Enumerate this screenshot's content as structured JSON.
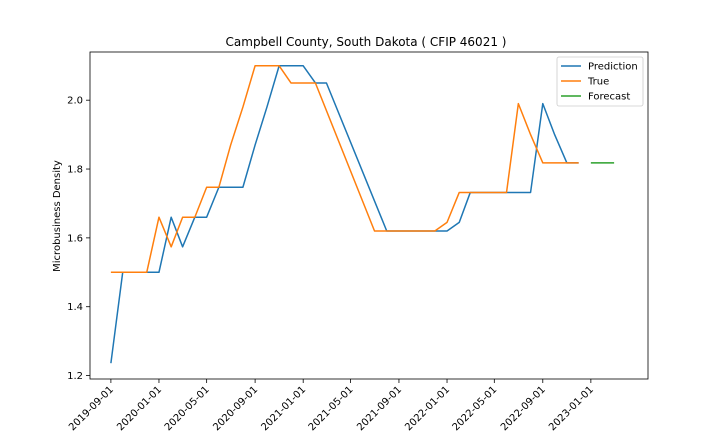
{
  "chart_data": {
    "type": "line",
    "title": "Campbell County, South Dakota ( CFIP 46021 )",
    "xlabel": "",
    "ylabel": "Microbusiness Density",
    "ylim": [
      1.19,
      2.14
    ],
    "xlim": [
      "2019-07-10",
      "2023-05-26"
    ],
    "x_ticks": [
      "2019-09-01",
      "2020-01-01",
      "2020-05-01",
      "2020-09-01",
      "2021-01-01",
      "2021-05-01",
      "2021-09-01",
      "2022-01-01",
      "2022-05-01",
      "2022-09-01",
      "2023-01-01"
    ],
    "y_ticks": [
      "1.2",
      "1.4",
      "1.6",
      "1.8",
      "2.0"
    ],
    "legend_position": "top-right",
    "grid": false,
    "series": [
      {
        "name": "Prediction",
        "color": "#1f77b4",
        "x": [
          "2019-09-01",
          "2019-10-01",
          "2019-11-01",
          "2019-12-01",
          "2020-01-01",
          "2020-02-01",
          "2020-03-01",
          "2020-04-01",
          "2020-05-01",
          "2020-06-01",
          "2020-07-01",
          "2020-08-01",
          "2020-09-01",
          "2020-10-01",
          "2020-11-01",
          "2020-12-01",
          "2021-01-01",
          "2021-02-01",
          "2021-03-01",
          "2021-08-01",
          "2021-09-01",
          "2021-12-01",
          "2022-01-01",
          "2022-02-01",
          "2022-03-01",
          "2022-04-01",
          "2022-05-01",
          "2022-06-01",
          "2022-07-01",
          "2022-08-01",
          "2022-09-01",
          "2022-10-01",
          "2022-11-01",
          "2022-12-01"
        ],
        "values": [
          1.236,
          1.5,
          1.5,
          1.5,
          1.5,
          1.66,
          1.574,
          1.66,
          1.66,
          1.747,
          1.747,
          1.747,
          1.87,
          1.98,
          2.1,
          2.1,
          2.1,
          2.05,
          2.05,
          1.62,
          1.62,
          1.62,
          1.62,
          1.645,
          1.732,
          1.732,
          1.732,
          1.732,
          1.732,
          1.732,
          1.99,
          1.9,
          1.818,
          1.818
        ]
      },
      {
        "name": "True",
        "color": "#ff7f0e",
        "x": [
          "2019-09-01",
          "2019-10-01",
          "2019-11-01",
          "2019-12-01",
          "2020-01-01",
          "2020-02-01",
          "2020-03-01",
          "2020-04-01",
          "2020-05-01",
          "2020-06-01",
          "2020-07-01",
          "2020-08-01",
          "2020-09-01",
          "2020-10-01",
          "2020-11-01",
          "2020-12-01",
          "2021-01-01",
          "2021-02-01",
          "2021-07-01",
          "2021-08-01",
          "2021-09-01",
          "2021-12-01",
          "2022-01-01",
          "2022-02-01",
          "2022-03-01",
          "2022-04-01",
          "2022-05-01",
          "2022-06-01",
          "2022-07-01",
          "2022-08-01",
          "2022-09-01",
          "2022-10-01",
          "2022-11-01",
          "2022-12-01"
        ],
        "values": [
          1.5,
          1.5,
          1.5,
          1.5,
          1.66,
          1.574,
          1.66,
          1.66,
          1.747,
          1.747,
          1.87,
          1.98,
          2.1,
          2.1,
          2.1,
          2.05,
          2.05,
          2.05,
          1.62,
          1.62,
          1.62,
          1.62,
          1.645,
          1.732,
          1.732,
          1.732,
          1.732,
          1.732,
          1.99,
          1.9,
          1.818,
          1.818,
          1.818,
          1.818
        ]
      },
      {
        "name": "Forecast",
        "color": "#2ca02c",
        "x": [
          "2023-01-01",
          "2023-02-01",
          "2023-03-01"
        ],
        "values": [
          1.818,
          1.818,
          1.818
        ]
      }
    ]
  }
}
